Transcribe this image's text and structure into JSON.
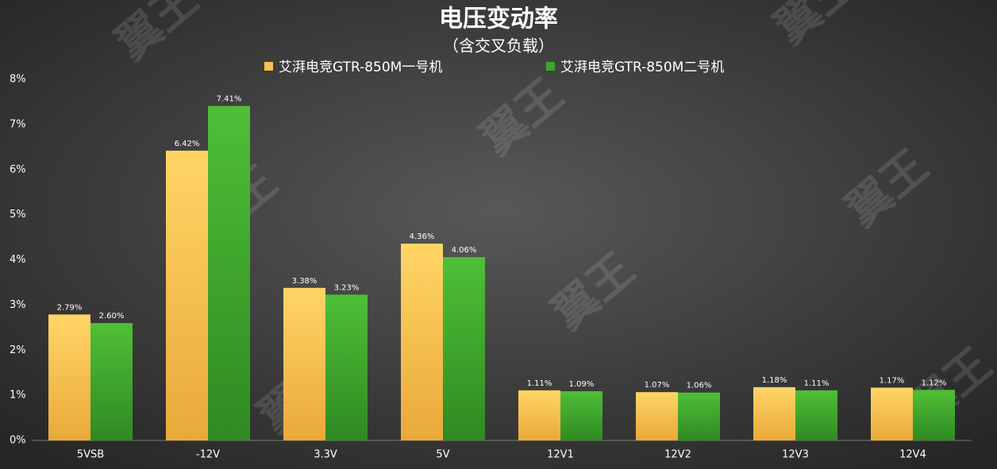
{
  "chart_data": {
    "type": "bar",
    "title": "电压变动率",
    "subtitle": "（含交叉负载）",
    "watermark": "翼王",
    "categories": [
      "5VSB",
      "-12V",
      "3.3V",
      "5V",
      "12V1",
      "12V2",
      "12V3",
      "12V4"
    ],
    "series": [
      {
        "name": "艾湃电竞GTR-850M一号机",
        "color": "#f5c04e",
        "values": [
          2.79,
          6.42,
          3.38,
          4.36,
          1.11,
          1.07,
          1.18,
          1.17
        ],
        "value_labels": [
          "2.79%",
          "6.42%",
          "3.38%",
          "4.36%",
          "1.11%",
          "1.07%",
          "1.18%",
          "1.17%"
        ]
      },
      {
        "name": "艾湃电竞GTR-850M二号机",
        "color": "#3fa62c",
        "values": [
          2.6,
          7.41,
          3.23,
          4.06,
          1.09,
          1.06,
          1.11,
          1.12
        ],
        "value_labels": [
          "2.60%",
          "7.41%",
          "3.23%",
          "4.06%",
          "1.09%",
          "1.06%",
          "1.11%",
          "1.12%"
        ]
      }
    ],
    "ylim": [
      0,
      8
    ],
    "yticks": [
      {
        "value": 0,
        "label": "0%"
      },
      {
        "value": 1,
        "label": "1%"
      },
      {
        "value": 2,
        "label": "2%"
      },
      {
        "value": 3,
        "label": "3%"
      },
      {
        "value": 4,
        "label": "4%"
      },
      {
        "value": 5,
        "label": "5%"
      },
      {
        "value": 6,
        "label": "6%"
      },
      {
        "value": 7,
        "label": "7%"
      },
      {
        "value": 8,
        "label": "8%"
      }
    ],
    "grid": false
  }
}
